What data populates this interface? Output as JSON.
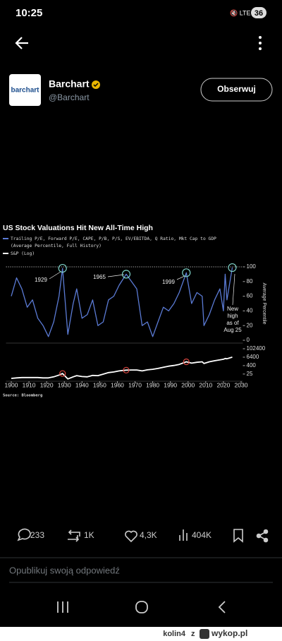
{
  "status": {
    "time": "10:25",
    "battery": "36"
  },
  "post": {
    "logo": "barchart",
    "author": "Barchart",
    "handle": "@Barchart",
    "follow": "Obserwuj",
    "chart": {
      "type": "line",
      "title": "US Stock Valuations Hit New All-Time High",
      "name_note": "(Average Percentile, Full History)",
      "y_label": "Average Percentile",
      "source": "Source: Bloomberg",
      "annotations": [
        "1929",
        "1965",
        "1999"
      ],
      "new_high": [
        "New",
        "high",
        "as of",
        "Aug 25"
      ],
      "x": [
        1900,
        1903,
        1906,
        1909,
        1912,
        1915,
        1918,
        1921,
        1924,
        1927,
        1929,
        1932,
        1935,
        1937,
        1940,
        1943,
        1946,
        1949,
        1952,
        1955,
        1958,
        1961,
        1965,
        1968,
        1971,
        1974,
        1977,
        1980,
        1983,
        1986,
        1989,
        1992,
        1995,
        1999,
        2002,
        2005,
        2008,
        2009,
        2012,
        2015,
        2018,
        2020,
        2021,
        2022,
        2025
      ],
      "series": [
        {
          "name": "Trailing P/E, Forward P/E, CAPE, P/B, P/S, EV/EBITDA, Q Ratio, Mkt Cap to GDP",
          "color": "#5b7bd5",
          "values": [
            60,
            85,
            70,
            45,
            55,
            30,
            20,
            5,
            25,
            60,
            98,
            8,
            50,
            70,
            30,
            35,
            55,
            20,
            25,
            55,
            60,
            75,
            90,
            80,
            70,
            20,
            25,
            5,
            25,
            45,
            40,
            50,
            65,
            92,
            50,
            65,
            60,
            20,
            35,
            55,
            70,
            40,
            90,
            55,
            99
          ]
        },
        {
          "name": "S&P (Log)",
          "color": "#ffffff",
          "axis": "y2",
          "values": [
            6,
            7,
            8,
            8,
            8,
            8,
            7,
            7,
            10,
            18,
            30,
            5,
            10,
            15,
            11,
            10,
            16,
            15,
            24,
            40,
            50,
            70,
            90,
            95,
            95,
            70,
            100,
            120,
            160,
            230,
            330,
            420,
            600,
            1400,
            900,
            1200,
            1400,
            800,
            1400,
            2000,
            2700,
            3200,
            4200,
            3800,
            6400
          ]
        }
      ],
      "xlim": [
        1897,
        2031
      ],
      "xticks": [
        1900,
        1910,
        1920,
        1930,
        1940,
        1950,
        1960,
        1970,
        1980,
        1990,
        2000,
        2010,
        2020,
        2030
      ],
      "ylim": [
        0,
        100
      ],
      "yticks": [
        0,
        20,
        40,
        60,
        80,
        100
      ],
      "y2lim": [
        3,
        204800
      ],
      "y2ticks": [
        25,
        400,
        6400,
        102400
      ],
      "y2_log": true
    }
  },
  "actions": {
    "replies": "233",
    "reposts": "1K",
    "likes": "4,3K",
    "views": "404K"
  },
  "reply_placeholder": "Opublikuj swoją odpowiedź",
  "watermark": {
    "user": "kolin4",
    "z": "z",
    "site": "wykop.pl"
  }
}
